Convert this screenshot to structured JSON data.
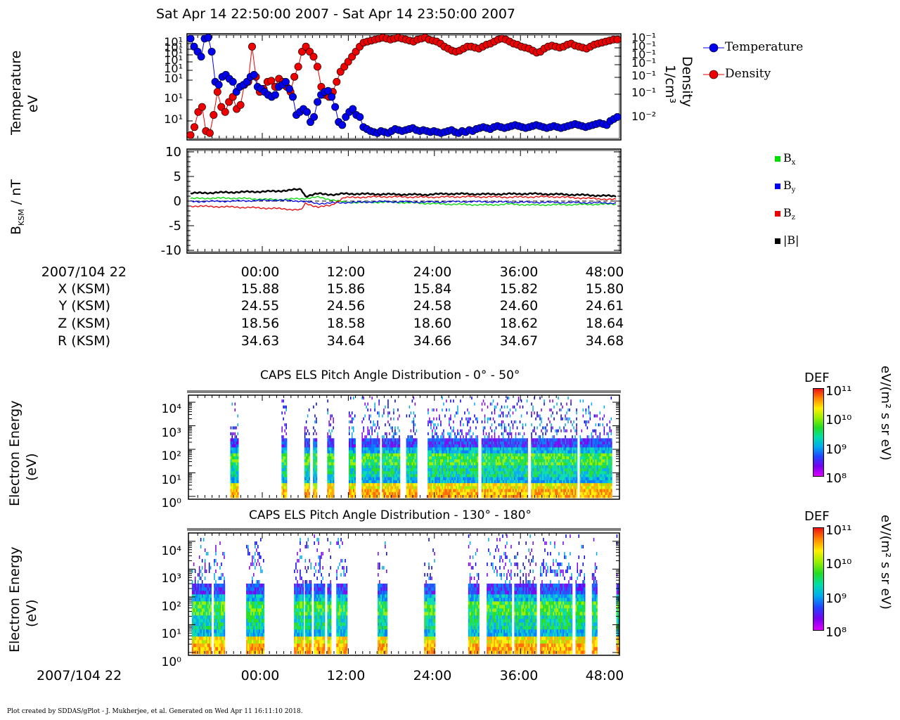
{
  "page": {
    "title": "Sat Apr 14 22:50:00 2007 - Sat Apr 14 23:50:00 2007",
    "footer": "Plot created by SDDAS/gPlot - J. Mukherjee, et al.  Generated on Wed Apr 11 16:11:10 2018."
  },
  "colors": {
    "temperature": "#0000ee",
    "density": "#ee0000",
    "bx": "#00dd00",
    "by": "#0000ee",
    "bz": "#ee0000",
    "bmag": "#000000"
  },
  "panel1": {
    "ylabel_line1": "Temperature",
    "ylabel_line2": "eV",
    "y2label_line1": "Density",
    "y2label_line2": "1/cm³",
    "left_ticks": [
      "10¹",
      "10¹",
      "10¹",
      "10¹",
      "10¹",
      "10¹",
      "10¹",
      "10¹"
    ],
    "right_ticks": [
      "10⁻¹",
      "10⁻¹",
      "10⁻¹",
      "10⁻¹",
      "10⁻¹",
      "10⁻¹",
      "10⁻²"
    ],
    "legend": [
      "Temperature",
      "Density"
    ]
  },
  "panel2": {
    "ylabel_main": "B",
    "ylabel_sub": "KSM",
    "ylabel_rest": " / nT",
    "y_ticks": [
      "10",
      "5",
      "0",
      "-5",
      "-10"
    ],
    "legend": [
      {
        "main": "B",
        "sub": "x"
      },
      {
        "main": "B",
        "sub": "y"
      },
      {
        "main": "B",
        "sub": "z"
      },
      {
        "main": "|B|",
        "sub": ""
      }
    ]
  },
  "ephemeris": {
    "labels": [
      "2007/104 22",
      "X (KSM)",
      "Y (KSM)",
      "Z (KSM)",
      "R (KSM)"
    ],
    "columns": [
      [
        "00:00",
        "15.88",
        "24.55",
        "18.56",
        "34.63"
      ],
      [
        "12:00",
        "15.86",
        "24.56",
        "18.58",
        "34.64"
      ],
      [
        "24:00",
        "15.84",
        "24.58",
        "18.60",
        "34.66"
      ],
      [
        "36:00",
        "15.82",
        "24.60",
        "18.62",
        "34.67"
      ],
      [
        "48:00",
        "15.80",
        "24.61",
        "18.64",
        "34.68"
      ]
    ]
  },
  "spec1": {
    "title": "CAPS ELS Pitch Angle Distribution - 0° - 50°",
    "ylabel_line1": "Electron Energy",
    "ylabel_line2": "(eV)",
    "y_ticks": [
      "10⁴",
      "10³",
      "10²",
      "10¹",
      "10⁰"
    ],
    "colorbar_title": "DEF",
    "colorbar_unit": "eV/(m² s sr eV)",
    "colorbar_ticks": [
      "10¹¹",
      "10¹⁰",
      "10⁹",
      "10⁸"
    ]
  },
  "spec2": {
    "title": "CAPS ELS Pitch Angle Distribution - 130° - 180°",
    "ylabel_line1": "Electron Energy",
    "ylabel_line2": "(eV)",
    "y_ticks": [
      "10⁴",
      "10³",
      "10²",
      "10¹",
      "10⁰"
    ],
    "colorbar_title": "DEF",
    "colorbar_unit": "eV/(m² s sr eV)",
    "colorbar_ticks": [
      "10¹¹",
      "10¹⁰",
      "10⁹",
      "10⁸"
    ]
  },
  "bottom_axis": {
    "label": "2007/104 22",
    "ticks": [
      "00:00",
      "12:00",
      "24:00",
      "36:00",
      "48:00"
    ]
  },
  "chart_data": [
    {
      "type": "scatter",
      "panel": "plasma moments",
      "title": "",
      "series": [
        {
          "name": "Temperature",
          "axis": "left",
          "values": [
            0.98,
            0.9,
            0.85,
            0.8,
            0.98,
            0.99,
            0.85,
            0.55,
            0.52,
            0.6,
            0.62,
            0.58,
            0.55,
            0.45,
            0.5,
            0.52,
            0.55,
            0.6,
            0.62,
            0.5,
            0.48,
            0.45,
            0.42,
            0.4,
            0.42,
            0.5,
            0.52,
            0.55,
            0.48,
            0.4,
            0.22,
            0.25,
            0.28,
            0.25,
            0.15,
            0.2,
            0.35,
            0.42,
            0.45,
            0.46,
            0.4,
            0.3,
            0.15,
            0.12,
            0.2,
            0.25,
            0.28,
            0.22,
            0.2,
            0.1,
            0.08,
            0.06,
            0.05,
            0.04,
            0.06,
            0.05,
            0.04,
            0.06,
            0.08,
            0.07,
            0.06,
            0.07,
            0.08,
            0.09,
            0.07,
            0.06,
            0.07,
            0.06,
            0.05,
            0.06,
            0.05,
            0.04,
            0.05,
            0.06,
            0.07,
            0.05,
            0.04,
            0.06,
            0.05,
            0.07,
            0.06,
            0.08,
            0.09,
            0.1,
            0.09,
            0.08,
            0.1,
            0.11,
            0.1,
            0.09,
            0.1,
            0.11,
            0.12,
            0.11,
            0.1,
            0.09,
            0.1,
            0.11,
            0.12,
            0.11,
            0.1,
            0.09,
            0.1,
            0.11,
            0.1,
            0.09,
            0.1,
            0.11,
            0.12,
            0.13,
            0.12,
            0.11,
            0.1,
            0.11,
            0.12,
            0.13,
            0.14,
            0.13,
            0.12,
            0.16,
            0.18,
            0.2
          ]
        },
        {
          "name": "Density",
          "axis": "right",
          "values": [
            0.02,
            0.1,
            0.25,
            0.3,
            0.06,
            0.04,
            0.22,
            0.45,
            0.3,
            0.25,
            0.35,
            0.4,
            0.28,
            0.32,
            0.52,
            0.55,
            0.9,
            0.6,
            0.45,
            0.48,
            0.55,
            0.56,
            0.5,
            0.58,
            0.55,
            0.5,
            0.45,
            0.6,
            0.7,
            0.85,
            0.9,
            0.85,
            0.8,
            0.7,
            0.5,
            0.42,
            0.4,
            0.45,
            0.55,
            0.65,
            0.7,
            0.75,
            0.8,
            0.85,
            0.9,
            0.94,
            0.95,
            0.96,
            0.97,
            0.98,
            0.99,
            0.98,
            0.97,
            0.98,
            0.99,
            0.98,
            0.97,
            0.96,
            0.95,
            0.97,
            0.98,
            0.99,
            0.97,
            0.96,
            0.95,
            0.93,
            0.9,
            0.88,
            0.86,
            0.85,
            0.86,
            0.88,
            0.9,
            0.9,
            0.89,
            0.88,
            0.9,
            0.92,
            0.93,
            0.95,
            0.97,
            0.98,
            0.97,
            0.95,
            0.93,
            0.92,
            0.9,
            0.89,
            0.88,
            0.86,
            0.84,
            0.85,
            0.88,
            0.9,
            0.91,
            0.9,
            0.89,
            0.9,
            0.92,
            0.93,
            0.91,
            0.9,
            0.89,
            0.88,
            0.9,
            0.92,
            0.93,
            0.94,
            0.95,
            0.96,
            0.97,
            0.97
          ]
        }
      ]
    },
    {
      "type": "line",
      "panel": "magnetic field",
      "ylim": [
        -10,
        10
      ],
      "series": [
        {
          "name": "Bx",
          "knots": [
            [
              0,
              0.5
            ],
            [
              5,
              0.6
            ],
            [
              10,
              0.6
            ],
            [
              20,
              0.3
            ],
            [
              26,
              0.5
            ],
            [
              30,
              0.8
            ],
            [
              36,
              -0.2
            ],
            [
              40,
              -0.3
            ],
            [
              45,
              -0.2
            ],
            [
              50,
              -0.3
            ],
            [
              60,
              -0.6
            ],
            [
              70,
              -0.8
            ],
            [
              75,
              -0.6
            ],
            [
              80,
              -0.8
            ],
            [
              90,
              -0.7
            ],
            [
              100,
              -0.6
            ]
          ]
        },
        {
          "name": "By",
          "knots": [
            [
              0,
              -0.1
            ],
            [
              10,
              0.0
            ],
            [
              20,
              0.2
            ],
            [
              26,
              0.0
            ],
            [
              30,
              -0.5
            ],
            [
              36,
              -0.3
            ],
            [
              45,
              -0.1
            ],
            [
              55,
              -0.2
            ],
            [
              65,
              -0.1
            ],
            [
              75,
              -0.2
            ],
            [
              90,
              -0.3
            ],
            [
              100,
              -0.4
            ]
          ]
        },
        {
          "name": "Bz",
          "knots": [
            [
              0,
              -1.0
            ],
            [
              10,
              -1.2
            ],
            [
              20,
              -1.5
            ],
            [
              26,
              -1.8
            ],
            [
              27,
              -0.5
            ],
            [
              30,
              -1.2
            ],
            [
              33,
              -0.9
            ],
            [
              36,
              0.7
            ],
            [
              45,
              0.9
            ],
            [
              55,
              0.8
            ],
            [
              65,
              0.9
            ],
            [
              75,
              0.8
            ],
            [
              85,
              0.9
            ],
            [
              100,
              0.3
            ]
          ]
        },
        {
          "name": "|B|",
          "knots": [
            [
              0,
              1.6
            ],
            [
              10,
              1.8
            ],
            [
              20,
              2.0
            ],
            [
              26,
              2.4
            ],
            [
              27,
              1.0
            ],
            [
              30,
              1.5
            ],
            [
              34,
              1.3
            ],
            [
              36,
              1.5
            ],
            [
              45,
              1.4
            ],
            [
              55,
              1.3
            ],
            [
              60,
              1.5
            ],
            [
              70,
              1.4
            ],
            [
              80,
              1.5
            ],
            [
              90,
              1.3
            ],
            [
              100,
              1.0
            ]
          ]
        }
      ]
    },
    {
      "type": "heatmap",
      "panel": "CAPS ELS Pitch Angle Distribution - 0° - 50°",
      "data_intervals_percent": [
        [
          9.7,
          11.4
        ],
        [
          21.6,
          22.6
        ],
        [
          26.9,
          27.9
        ],
        [
          28.9,
          29.6
        ],
        [
          32.2,
          33.8
        ],
        [
          37.2,
          38.8
        ],
        [
          40.2,
          44.3
        ],
        [
          44.9,
          48.9
        ],
        [
          50.5,
          53.0
        ],
        [
          55.5,
          67.0
        ],
        [
          68.0,
          78.5
        ],
        [
          79.5,
          90.0
        ],
        [
          90.8,
          98.3
        ]
      ]
    },
    {
      "type": "heatmap",
      "panel": "CAPS ELS Pitch Angle Distribution - 130° - 180°",
      "data_intervals_percent": [
        [
          0.8,
          5.3
        ],
        [
          5.9,
          8.5
        ],
        [
          13.4,
          17.5
        ],
        [
          24.5,
          26.5
        ],
        [
          27.0,
          28.5
        ],
        [
          29.1,
          31.5
        ],
        [
          32.2,
          32.9
        ],
        [
          34.3,
          36.6
        ],
        [
          43.9,
          46.1
        ],
        [
          54.7,
          57.0
        ],
        [
          64.9,
          67.3
        ],
        [
          69.2,
          75.0
        ],
        [
          75.6,
          80.6
        ],
        [
          81.6,
          88.8
        ],
        [
          89.8,
          91.9
        ],
        [
          93.6,
          94.8
        ],
        [
          99.3,
          99.8
        ]
      ]
    }
  ]
}
